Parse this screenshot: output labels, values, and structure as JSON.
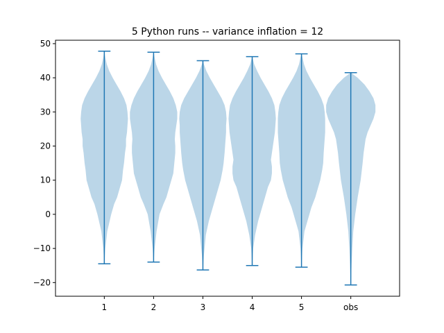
{
  "chart_data": {
    "type": "violin",
    "title": "5 Python runs -- variance inflation = 12",
    "xlabel": "",
    "ylabel": "",
    "categories": [
      "1",
      "2",
      "3",
      "4",
      "5",
      "obs"
    ],
    "ylim": [
      -24,
      51
    ],
    "yticks": [
      -20,
      -10,
      0,
      10,
      20,
      30,
      40,
      50
    ],
    "ytick_labels": [
      "−20",
      "−10",
      "0",
      "10",
      "20",
      "30",
      "40",
      "50"
    ],
    "grid": false,
    "legend": "none",
    "colors": {
      "body": "#1f77b4",
      "body_opacity": 0.3,
      "lines": "#1f77b4"
    },
    "series": [
      {
        "category": "1",
        "min": -14.5,
        "max": 47.8,
        "profile": [
          [
            -14.5,
            0.002
          ],
          [
            -10,
            0.02
          ],
          [
            -5,
            0.06
          ],
          [
            0,
            0.14
          ],
          [
            3,
            0.2
          ],
          [
            5,
            0.26
          ],
          [
            8,
            0.32
          ],
          [
            10,
            0.36
          ],
          [
            13,
            0.38
          ],
          [
            15,
            0.4
          ],
          [
            18,
            0.42
          ],
          [
            20,
            0.44
          ],
          [
            22,
            0.44
          ],
          [
            24,
            0.46
          ],
          [
            26,
            0.47
          ],
          [
            28,
            0.48
          ],
          [
            30,
            0.47
          ],
          [
            32,
            0.45
          ],
          [
            34,
            0.4
          ],
          [
            36,
            0.33
          ],
          [
            38,
            0.25
          ],
          [
            40,
            0.17
          ],
          [
            42,
            0.1
          ],
          [
            44,
            0.05
          ],
          [
            46,
            0.02
          ],
          [
            47.8,
            0.002
          ]
        ]
      },
      {
        "category": "2",
        "min": -14.0,
        "max": 47.5,
        "profile": [
          [
            -14,
            0.002
          ],
          [
            -10,
            0.02
          ],
          [
            -5,
            0.06
          ],
          [
            0,
            0.12
          ],
          [
            3,
            0.2
          ],
          [
            5,
            0.26
          ],
          [
            8,
            0.32
          ],
          [
            10,
            0.36
          ],
          [
            12,
            0.4
          ],
          [
            15,
            0.42
          ],
          [
            18,
            0.44
          ],
          [
            20,
            0.44
          ],
          [
            22,
            0.43
          ],
          [
            24,
            0.44
          ],
          [
            26,
            0.46
          ],
          [
            28,
            0.48
          ],
          [
            30,
            0.48
          ],
          [
            32,
            0.45
          ],
          [
            34,
            0.4
          ],
          [
            36,
            0.33
          ],
          [
            38,
            0.25
          ],
          [
            40,
            0.17
          ],
          [
            42,
            0.1
          ],
          [
            44,
            0.05
          ],
          [
            46,
            0.02
          ],
          [
            47.5,
            0.002
          ]
        ]
      },
      {
        "category": "3",
        "min": -16.3,
        "max": 45.0,
        "profile": [
          [
            -16.3,
            0.002
          ],
          [
            -12,
            0.02
          ],
          [
            -6,
            0.06
          ],
          [
            -2,
            0.12
          ],
          [
            2,
            0.2
          ],
          [
            5,
            0.26
          ],
          [
            8,
            0.32
          ],
          [
            10,
            0.36
          ],
          [
            13,
            0.4
          ],
          [
            15,
            0.42
          ],
          [
            18,
            0.44
          ],
          [
            20,
            0.45
          ],
          [
            22,
            0.46
          ],
          [
            24,
            0.47
          ],
          [
            26,
            0.47
          ],
          [
            28,
            0.48
          ],
          [
            30,
            0.47
          ],
          [
            32,
            0.44
          ],
          [
            34,
            0.38
          ],
          [
            36,
            0.3
          ],
          [
            38,
            0.22
          ],
          [
            40,
            0.14
          ],
          [
            42,
            0.07
          ],
          [
            44,
            0.02
          ],
          [
            45,
            0.002
          ]
        ]
      },
      {
        "category": "4",
        "min": -15.0,
        "max": 46.2,
        "profile": [
          [
            -15,
            0.002
          ],
          [
            -10,
            0.02
          ],
          [
            -6,
            0.06
          ],
          [
            -2,
            0.12
          ],
          [
            2,
            0.2
          ],
          [
            5,
            0.26
          ],
          [
            8,
            0.32
          ],
          [
            10,
            0.38
          ],
          [
            12,
            0.4
          ],
          [
            14,
            0.4
          ],
          [
            16,
            0.38
          ],
          [
            18,
            0.4
          ],
          [
            20,
            0.42
          ],
          [
            22,
            0.44
          ],
          [
            24,
            0.46
          ],
          [
            26,
            0.47
          ],
          [
            28,
            0.48
          ],
          [
            30,
            0.47
          ],
          [
            32,
            0.45
          ],
          [
            34,
            0.4
          ],
          [
            36,
            0.33
          ],
          [
            38,
            0.25
          ],
          [
            40,
            0.17
          ],
          [
            42,
            0.1
          ],
          [
            44,
            0.04
          ],
          [
            46.2,
            0.002
          ]
        ]
      },
      {
        "category": "5",
        "min": -15.5,
        "max": 47.0,
        "profile": [
          [
            -15.5,
            0.002
          ],
          [
            -10,
            0.02
          ],
          [
            -5,
            0.06
          ],
          [
            -2,
            0.12
          ],
          [
            2,
            0.2
          ],
          [
            5,
            0.28
          ],
          [
            8,
            0.34
          ],
          [
            10,
            0.38
          ],
          [
            13,
            0.42
          ],
          [
            15,
            0.44
          ],
          [
            18,
            0.45
          ],
          [
            20,
            0.46
          ],
          [
            22,
            0.47
          ],
          [
            24,
            0.48
          ],
          [
            26,
            0.48
          ],
          [
            28,
            0.48
          ],
          [
            30,
            0.47
          ],
          [
            32,
            0.45
          ],
          [
            34,
            0.4
          ],
          [
            36,
            0.33
          ],
          [
            38,
            0.25
          ],
          [
            40,
            0.17
          ],
          [
            42,
            0.1
          ],
          [
            44,
            0.05
          ],
          [
            46,
            0.02
          ],
          [
            47,
            0.002
          ]
        ]
      },
      {
        "category": "obs",
        "min": -20.7,
        "max": 41.5,
        "profile": [
          [
            -20.7,
            0.002
          ],
          [
            -15,
            0.015
          ],
          [
            -10,
            0.03
          ],
          [
            -5,
            0.05
          ],
          [
            0,
            0.09
          ],
          [
            5,
            0.14
          ],
          [
            10,
            0.2
          ],
          [
            15,
            0.24
          ],
          [
            18,
            0.26
          ],
          [
            20,
            0.28
          ],
          [
            22,
            0.3
          ],
          [
            24,
            0.34
          ],
          [
            26,
            0.4
          ],
          [
            28,
            0.46
          ],
          [
            30,
            0.5
          ],
          [
            32,
            0.5
          ],
          [
            34,
            0.46
          ],
          [
            36,
            0.38
          ],
          [
            38,
            0.28
          ],
          [
            40,
            0.14
          ],
          [
            41.5,
            0.002
          ]
        ]
      }
    ]
  }
}
